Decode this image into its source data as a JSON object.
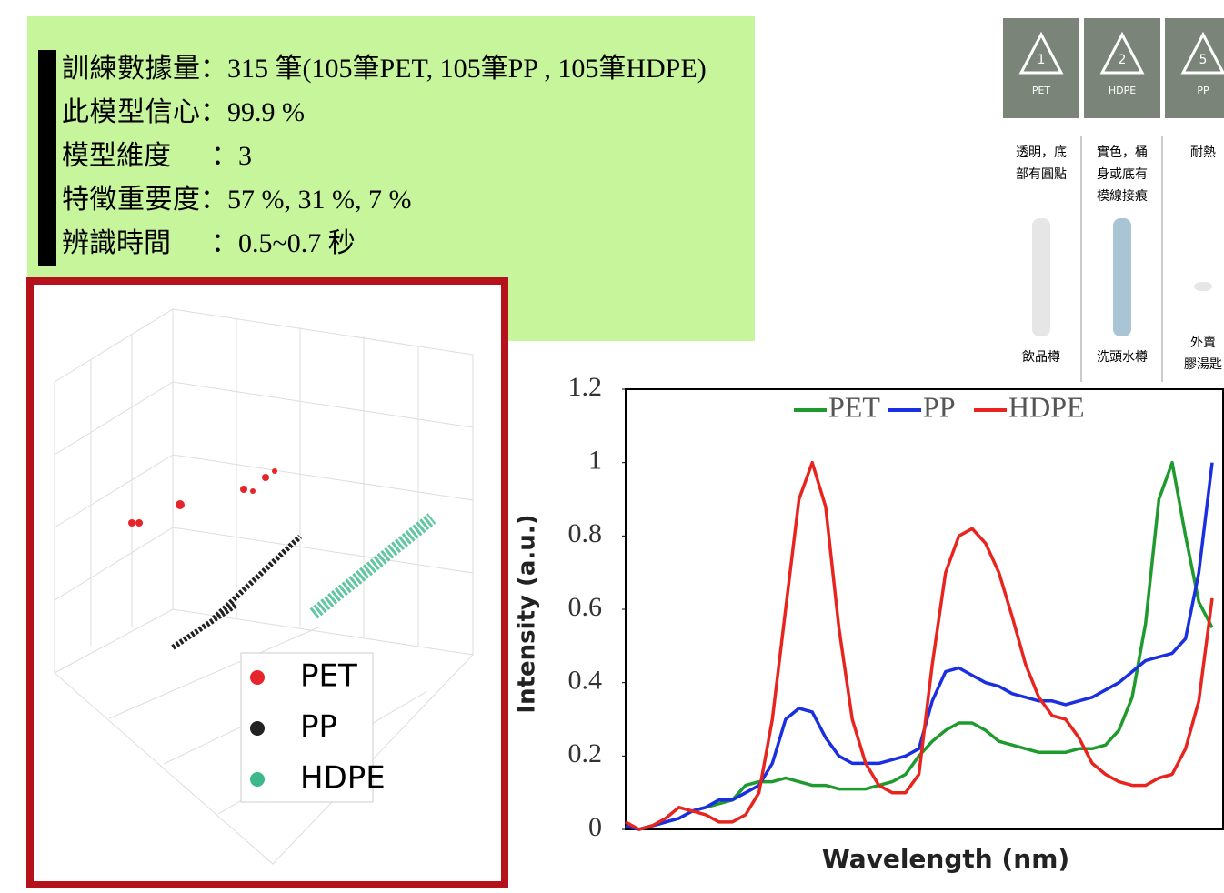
{
  "info_box": {
    "lines": [
      {
        "label": "訓練數據量",
        "value": "：315 筆(105筆PET, 105筆PP , 105筆HDPE)"
      },
      {
        "label": "此模型信心",
        "value": "：99.9 %"
      },
      {
        "label": "模型維度",
        "value": "：3"
      },
      {
        "label": "特徵重要度",
        "value": "：57 %, 31 %, 7 %"
      },
      {
        "label": "辨識時間",
        "value": "：0.5~0.7 秒"
      }
    ]
  },
  "scatter_legend": [
    {
      "name": "PET",
      "color": "#e8242b"
    },
    {
      "name": "PP",
      "color": "#222222"
    },
    {
      "name": "HDPE",
      "color": "#3cb98a"
    }
  ],
  "recycling": [
    {
      "code": "1",
      "name": "PET",
      "desc": "透明，底部有圓點",
      "example": "飲品樽"
    },
    {
      "code": "2",
      "name": "HDPE",
      "desc": "實色，桶身或底有模線接痕",
      "example": "洗頭水樽"
    },
    {
      "code": "5",
      "name": "PP",
      "desc": "耐熱",
      "example": "外賣膠湯匙"
    }
  ],
  "chart_data": {
    "type": "line",
    "x_label": "Wavelength (nm)",
    "y_label": "Intensity (a.u.)",
    "categories": [
      null,
      null,
      null,
      null,
      null,
      null,
      null,
      null,
      null,
      null,
      null,
      null,
      null,
      null,
      null,
      null,
      null,
      null,
      null,
      null,
      null,
      null,
      null,
      null,
      null,
      null,
      null,
      null,
      null,
      null,
      null,
      null,
      null,
      null,
      null,
      null,
      null,
      null,
      null,
      null,
      null,
      null,
      null,
      null,
      null
    ],
    "ylim": [
      0,
      1.2
    ],
    "yticks": [
      0,
      0.2,
      0.4,
      0.6,
      0.8,
      1,
      1.2
    ],
    "series": [
      {
        "name": "PET",
        "color": "#1e9a2e",
        "values": [
          0.01,
          0.0,
          0.01,
          0.02,
          0.03,
          0.05,
          0.06,
          0.07,
          0.08,
          0.12,
          0.13,
          0.13,
          0.14,
          0.13,
          0.12,
          0.12,
          0.11,
          0.11,
          0.11,
          0.12,
          0.13,
          0.15,
          0.2,
          0.24,
          0.27,
          0.29,
          0.29,
          0.27,
          0.24,
          0.23,
          0.22,
          0.21,
          0.21,
          0.21,
          0.22,
          0.22,
          0.23,
          0.27,
          0.36,
          0.56,
          0.9,
          1.0,
          0.8,
          0.62,
          0.55
        ]
      },
      {
        "name": "PP",
        "color": "#1a2fe0",
        "values": [
          0.01,
          0.0,
          0.01,
          0.02,
          0.03,
          0.05,
          0.06,
          0.08,
          0.08,
          0.1,
          0.12,
          0.18,
          0.3,
          0.33,
          0.32,
          0.25,
          0.2,
          0.18,
          0.18,
          0.18,
          0.19,
          0.2,
          0.22,
          0.35,
          0.43,
          0.44,
          0.42,
          0.4,
          0.39,
          0.37,
          0.36,
          0.35,
          0.35,
          0.34,
          0.35,
          0.36,
          0.38,
          0.4,
          0.43,
          0.46,
          0.47,
          0.48,
          0.52,
          0.7,
          1.0
        ]
      },
      {
        "name": "HDPE",
        "color": "#e8241f",
        "values": [
          0.02,
          0.0,
          0.01,
          0.03,
          0.06,
          0.05,
          0.04,
          0.02,
          0.02,
          0.04,
          0.1,
          0.3,
          0.6,
          0.9,
          1.0,
          0.88,
          0.55,
          0.3,
          0.18,
          0.12,
          0.1,
          0.1,
          0.15,
          0.45,
          0.7,
          0.8,
          0.82,
          0.78,
          0.7,
          0.58,
          0.45,
          0.36,
          0.31,
          0.3,
          0.25,
          0.18,
          0.15,
          0.13,
          0.12,
          0.12,
          0.14,
          0.15,
          0.22,
          0.35,
          0.63
        ]
      }
    ]
  }
}
